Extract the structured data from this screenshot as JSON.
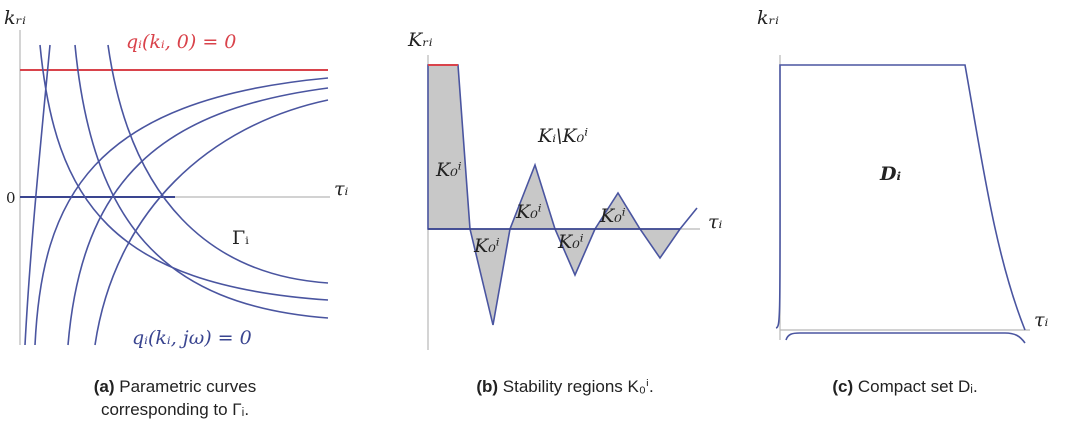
{
  "panel_a": {
    "y_axis_label": "kᵣᵢ",
    "red_curve_label": "qᵢ(kᵢ, 0) = 0",
    "zero_label": "0",
    "x_axis_label": "τᵢ",
    "region_label": "Γᵢ",
    "blue_curve_label": "qᵢ(kᵢ, jω) = 0",
    "caption": {
      "tag": "(a)",
      "lines": [
        "Parametric curves",
        "corresponding to Γᵢ."
      ]
    }
  },
  "panel_b": {
    "y_axis_label": "Kᵣᵢ",
    "complement_label": "Kᵢ\\K₀ⁱ",
    "region_labels": [
      "K₀ⁱ",
      "K₀ⁱ",
      "K₀ⁱ",
      "K₀ⁱ",
      "K₀ⁱ"
    ],
    "x_axis_label": "τᵢ",
    "caption": {
      "tag": "(b)",
      "text": "Stability regions K₀ⁱ."
    }
  },
  "panel_c": {
    "y_axis_label": "kᵣᵢ",
    "set_label": "Dᵢ",
    "x_axis_label": "τᵢ",
    "caption": {
      "tag": "(c)",
      "text": "Compact set Dᵢ."
    }
  }
}
